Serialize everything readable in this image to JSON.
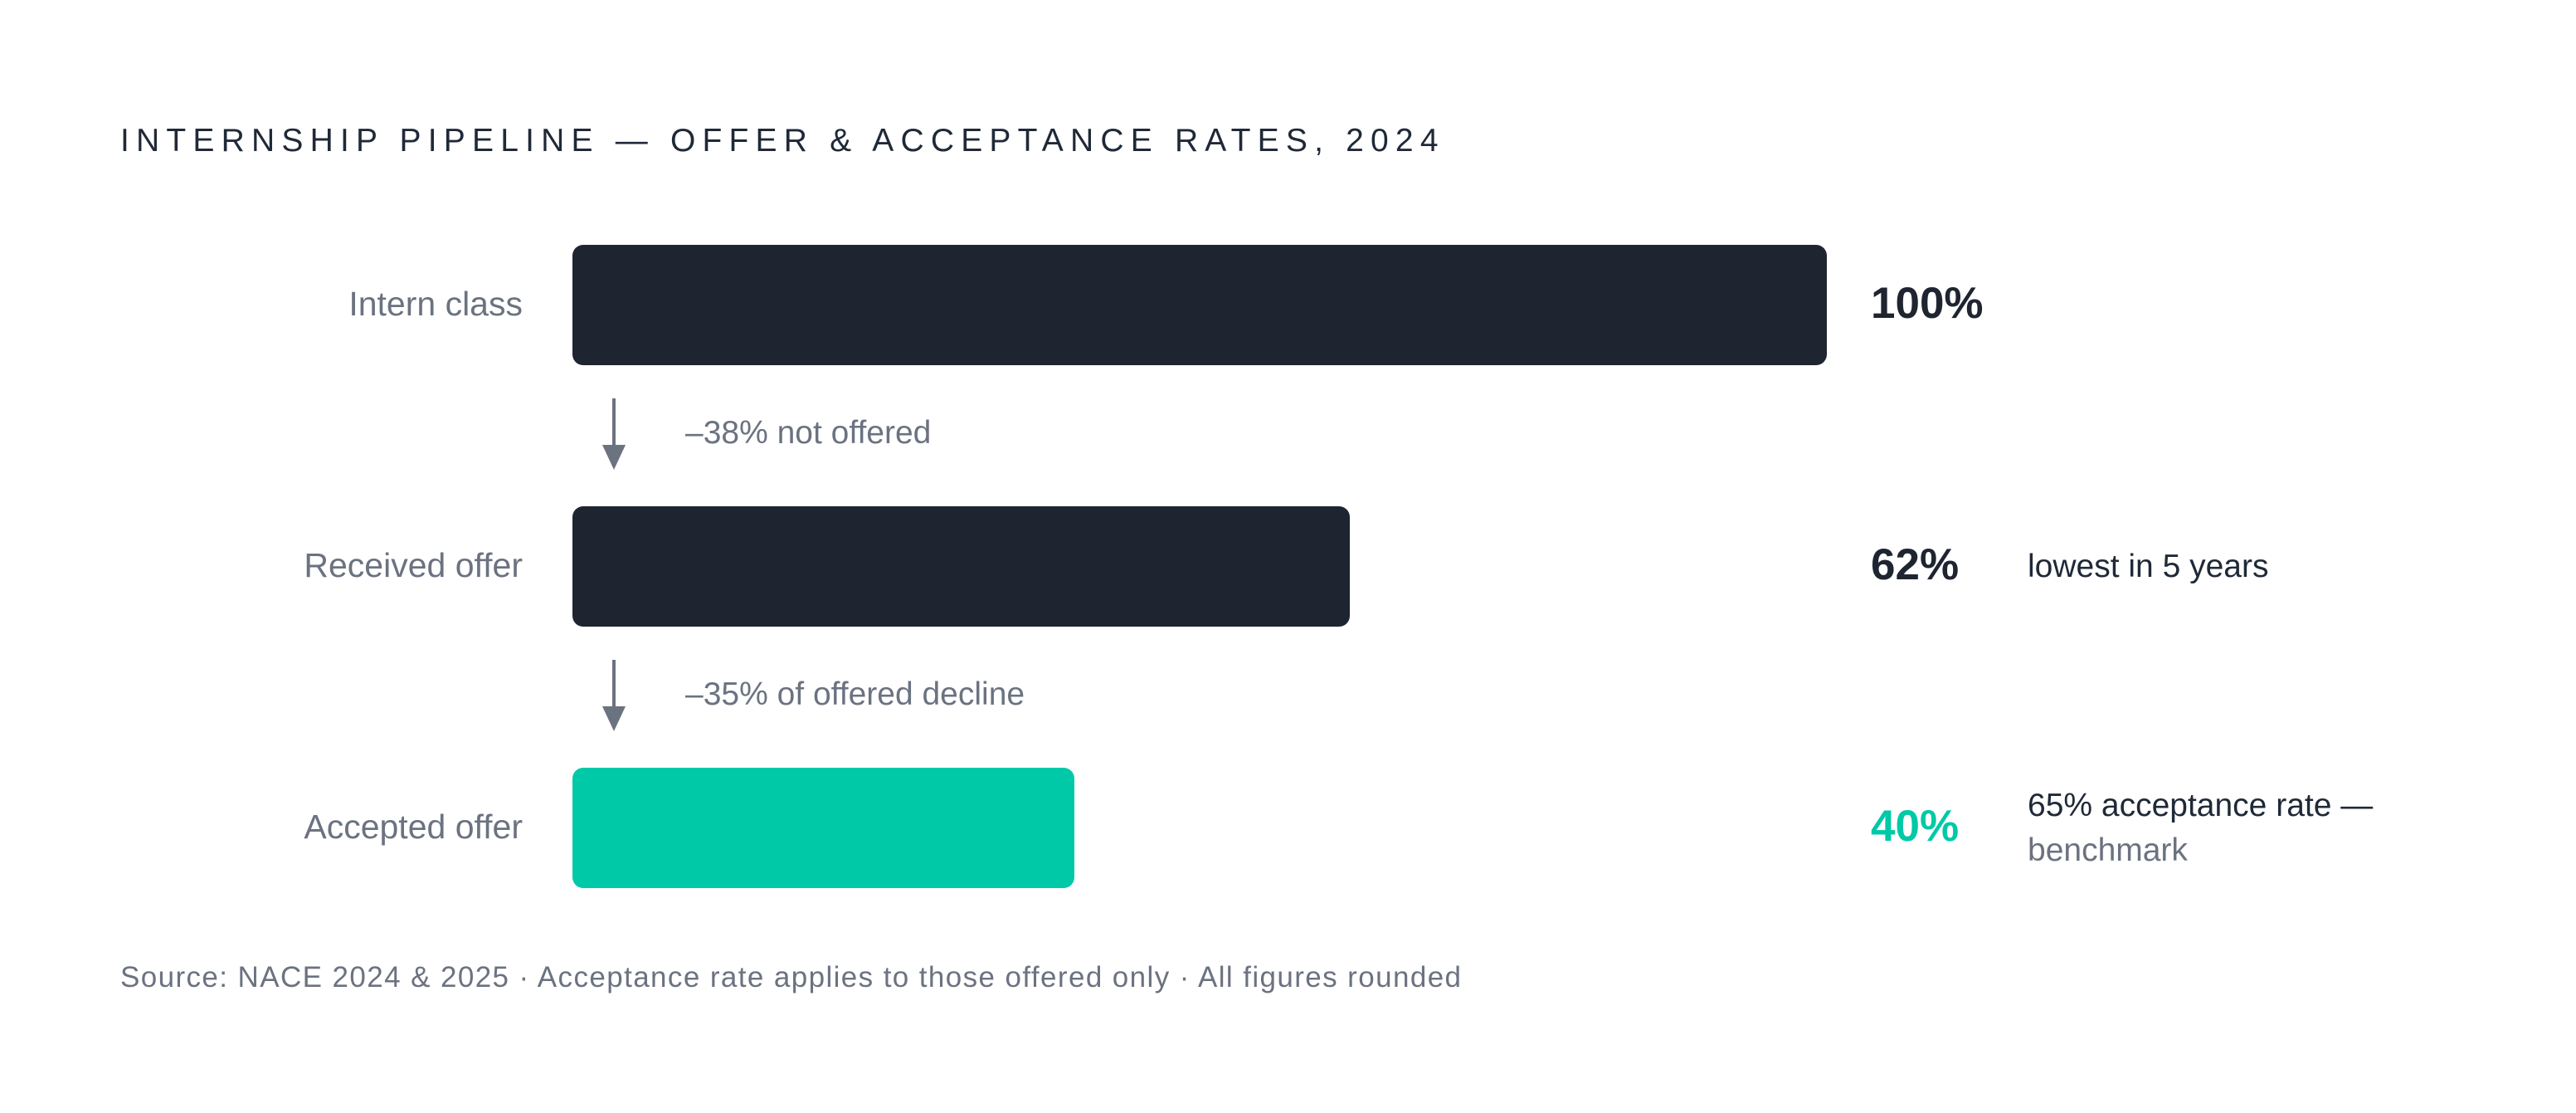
{
  "chart_data": {
    "type": "bar",
    "orientation": "horizontal",
    "title": "INTERNSHIP PIPELINE — OFFER & ACCEPTANCE RATES, 2024",
    "categories": [
      "Intern class",
      "Received offer",
      "Accepted offer"
    ],
    "values": [
      100,
      62,
      40
    ],
    "value_labels": [
      "100%",
      "62%",
      "40%"
    ],
    "xlim": [
      0,
      100
    ],
    "grid": false,
    "highlighted_category": "Accepted offer",
    "drops": [
      {
        "from": "Intern class",
        "to": "Received offer",
        "label": "–38% not offered"
      },
      {
        "from": "Received offer",
        "to": "Accepted offer",
        "label": "–35% of offered decline"
      }
    ],
    "annotations": [
      {
        "category": "Received offer",
        "text": "lowest in 5 years",
        "subtext": ""
      },
      {
        "category": "Accepted offer",
        "text": "65% acceptance rate —",
        "subtext": "benchmark"
      }
    ],
    "source": "Source: NACE 2024 & 2025 · Acceptance rate applies to those offered only · All figures rounded"
  },
  "colors": {
    "bar_default": "#1f2530",
    "bar_highlight": "#00c9a7",
    "muted_text": "#6b7280",
    "arrow": "#6b7280"
  },
  "icons": {
    "drop_arrow": "arrow-down-icon"
  }
}
